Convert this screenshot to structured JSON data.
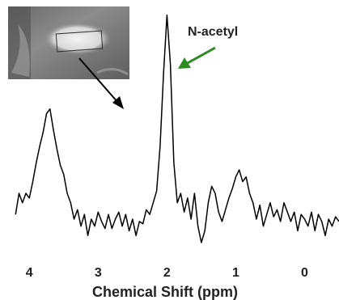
{
  "chart_data": {
    "type": "line",
    "xlabel": "Chemical Shift (ppm)",
    "annotation": "N-acetyl",
    "color": "#000000",
    "annotation_color": "#2e8b22",
    "xlim": [
      4.25,
      -0.5
    ],
    "ylim": [
      0,
      100
    ],
    "xticks": [
      4,
      3,
      2,
      1,
      0
    ],
    "x": [
      4.2,
      4.15,
      4.1,
      4.05,
      4.0,
      3.95,
      3.9,
      3.85,
      3.8,
      3.75,
      3.7,
      3.65,
      3.6,
      3.55,
      3.5,
      3.45,
      3.4,
      3.35,
      3.3,
      3.25,
      3.2,
      3.15,
      3.1,
      3.05,
      3.0,
      2.95,
      2.9,
      2.85,
      2.8,
      2.75,
      2.7,
      2.65,
      2.6,
      2.55,
      2.5,
      2.45,
      2.4,
      2.35,
      2.3,
      2.25,
      2.2,
      2.15,
      2.1,
      2.05,
      2.0,
      1.95,
      1.9,
      1.85,
      1.8,
      1.75,
      1.7,
      1.65,
      1.6,
      1.55,
      1.5,
      1.45,
      1.4,
      1.35,
      1.3,
      1.25,
      1.2,
      1.15,
      1.1,
      1.05,
      1.0,
      0.95,
      0.9,
      0.85,
      0.8,
      0.75,
      0.7,
      0.65,
      0.6,
      0.55,
      0.5,
      0.45,
      0.4,
      0.35,
      0.3,
      0.25,
      0.2,
      0.15,
      0.1,
      0.05,
      0.0,
      -0.05,
      -0.1,
      -0.15,
      -0.2,
      -0.25,
      -0.3,
      -0.35,
      -0.4,
      -0.45,
      -0.5
    ],
    "values": [
      12,
      21,
      17,
      21,
      19,
      26,
      34,
      41,
      47,
      55,
      57,
      48,
      40,
      33,
      29,
      21,
      17,
      10,
      14,
      7,
      12,
      3,
      10,
      7,
      13,
      9,
      6,
      12,
      6,
      10,
      13,
      7,
      12,
      5,
      10,
      3,
      9,
      8,
      14,
      12,
      17,
      22,
      41,
      72,
      97,
      76,
      34,
      17,
      21,
      13,
      19,
      10,
      21,
      7,
      0,
      5,
      17,
      24,
      21,
      13,
      9,
      14,
      19,
      23,
      28,
      31,
      26,
      28,
      21,
      17,
      10,
      16,
      7,
      12,
      17,
      11,
      14,
      9,
      17,
      13,
      9,
      13,
      5,
      12,
      10,
      7,
      13,
      5,
      12,
      9,
      3,
      10,
      7,
      11,
      9
    ]
  }
}
